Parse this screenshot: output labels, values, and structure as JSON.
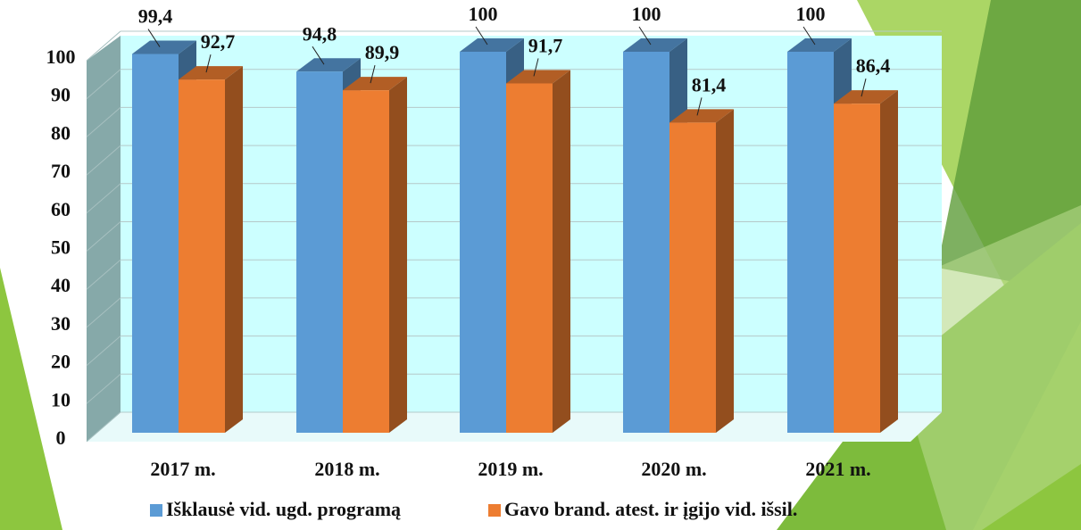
{
  "chart_data": {
    "type": "bar3d",
    "categories": [
      "2017 m.",
      "2018 m.",
      "2019 m.",
      "2020 m.",
      "2021 m."
    ],
    "series": [
      {
        "name": "Išklausė vid. ugd. programą",
        "color": "#5b9bd5",
        "values": [
          99.4,
          94.8,
          100,
          100,
          100
        ],
        "value_labels": [
          "99,4",
          "94,8",
          "100",
          "100",
          "100"
        ]
      },
      {
        "name": "Gavo brand. atest. ir įgijo vid. išsil.",
        "color": "#ed7d31",
        "values": [
          92.7,
          89.9,
          91.7,
          81.4,
          86.4
        ],
        "value_labels": [
          "92,7",
          "89,9",
          "91,7",
          "81,4",
          "86,4"
        ]
      }
    ],
    "ylim": [
      0,
      100
    ],
    "yticks": [
      0,
      10,
      20,
      30,
      40,
      50,
      60,
      70,
      80,
      90,
      100
    ],
    "grid": true
  }
}
